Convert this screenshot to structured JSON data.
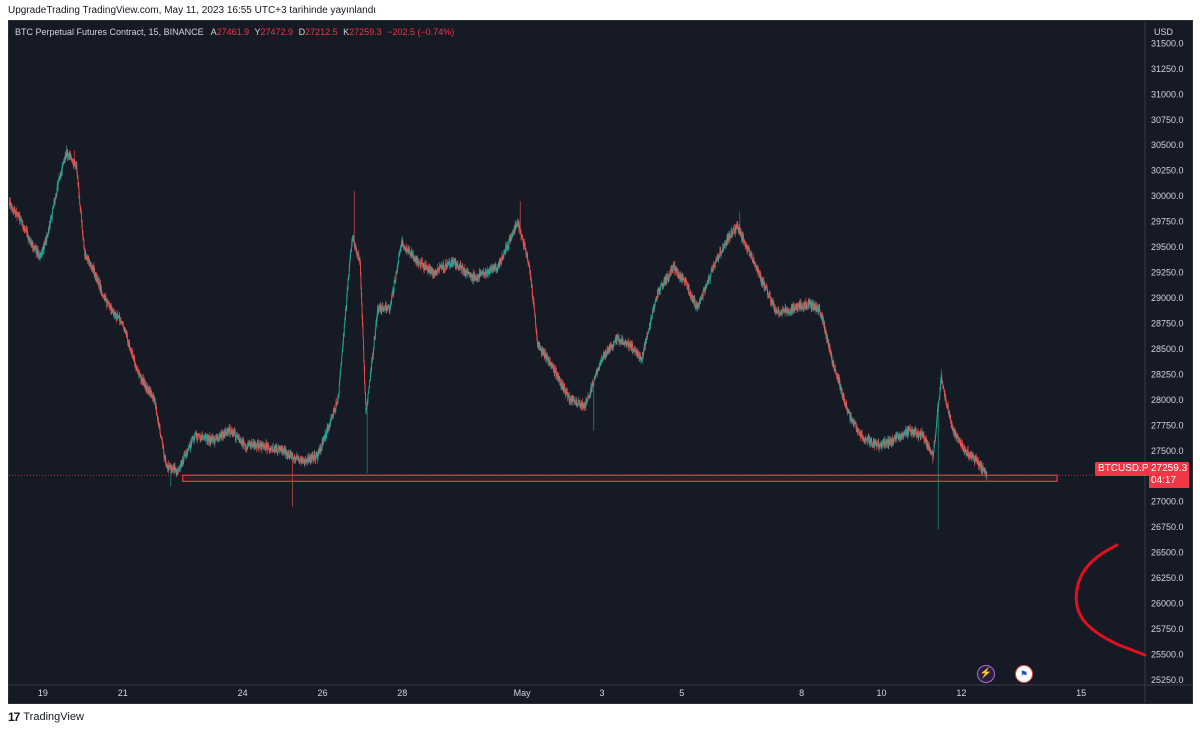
{
  "caption": "UpgradeTrading TradingView.com, May 11, 2023 16:55 UTC+3 tarihinde yayınlandı",
  "legend": {
    "symbol": "BTC Perpetual Futures Contract, 15, BINANCE",
    "open_label": "A",
    "open": "27461.9",
    "high_label": "Y",
    "high": "27472.9",
    "low_label": "D",
    "low": "27212.5",
    "close_label": "K",
    "close": "27259.3",
    "change": "−202.5 (−0.74%)"
  },
  "price_label": {
    "ticker": "BTCUSD.P",
    "price": "27259.3",
    "countdown": "04:17"
  },
  "footer": {
    "brand": "TradingView",
    "logo_text": "17"
  },
  "icons": {
    "flash": "lightning-icon",
    "flag": "us-flag-icon"
  },
  "colors": {
    "background": "#161a25",
    "up": "#26a69a",
    "down": "#ef5350",
    "support": "#f23645",
    "accent_curve": "#e01020"
  },
  "chart_data": {
    "type": "candlestick",
    "currency": "USD",
    "y_ticks": [
      "31500.0",
      "31250.0",
      "31000.0",
      "30750.0",
      "30500.0",
      "30250.0",
      "30000.0",
      "29750.0",
      "29500.0",
      "29250.0",
      "29000.0",
      "28750.0",
      "28500.0",
      "28250.0",
      "28000.0",
      "27750.0",
      "27500.0",
      "27000.0",
      "26750.0",
      "26500.0",
      "26250.0",
      "26000.0",
      "25750.0",
      "25500.0",
      "25250.0"
    ],
    "ylim": [
      25200,
      31720
    ],
    "x_ticks": [
      {
        "label": "19",
        "day": 1.5
      },
      {
        "label": "21",
        "day": 3.5
      },
      {
        "label": "24",
        "day": 6.5
      },
      {
        "label": "26",
        "day": 8.5
      },
      {
        "label": "28",
        "day": 10.5
      },
      {
        "label": "May",
        "day": 13.5
      },
      {
        "label": "3",
        "day": 15.5
      },
      {
        "label": "5",
        "day": 17.5
      },
      {
        "label": "8",
        "day": 20.5
      },
      {
        "label": "10",
        "day": 22.5
      },
      {
        "label": "12",
        "day": 24.5
      },
      {
        "label": "15",
        "day": 27.5
      }
    ],
    "xlim": [
      0.65,
      29.1
    ],
    "trend": [
      [
        0.65,
        29950
      ],
      [
        0.9,
        29800
      ],
      [
        1.2,
        29550
      ],
      [
        1.45,
        29400
      ],
      [
        1.65,
        29650
      ],
      [
        1.9,
        30150
      ],
      [
        2.1,
        30420
      ],
      [
        2.35,
        30300
      ],
      [
        2.55,
        29450
      ],
      [
        2.8,
        29250
      ],
      [
        3.1,
        28950
      ],
      [
        3.5,
        28750
      ],
      [
        3.9,
        28250
      ],
      [
        4.3,
        28000
      ],
      [
        4.6,
        27350
      ],
      [
        4.9,
        27300
      ],
      [
        5.3,
        27650
      ],
      [
        5.8,
        27600
      ],
      [
        6.2,
        27700
      ],
      [
        6.6,
        27550
      ],
      [
        7.0,
        27550
      ],
      [
        7.5,
        27500
      ],
      [
        8.0,
        27400
      ],
      [
        8.4,
        27450
      ],
      [
        8.9,
        28000
      ],
      [
        9.25,
        29600
      ],
      [
        9.45,
        29350
      ],
      [
        9.6,
        27850
      ],
      [
        9.9,
        28900
      ],
      [
        10.2,
        28900
      ],
      [
        10.5,
        29550
      ],
      [
        10.9,
        29350
      ],
      [
        11.3,
        29250
      ],
      [
        11.8,
        29350
      ],
      [
        12.3,
        29200
      ],
      [
        12.9,
        29300
      ],
      [
        13.4,
        29750
      ],
      [
        13.7,
        29300
      ],
      [
        13.9,
        28550
      ],
      [
        14.3,
        28300
      ],
      [
        14.7,
        28000
      ],
      [
        15.1,
        27950
      ],
      [
        15.5,
        28400
      ],
      [
        15.9,
        28600
      ],
      [
        16.2,
        28550
      ],
      [
        16.5,
        28400
      ],
      [
        16.9,
        29050
      ],
      [
        17.3,
        29300
      ],
      [
        17.6,
        29150
      ],
      [
        17.9,
        28900
      ],
      [
        18.3,
        29300
      ],
      [
        18.6,
        29550
      ],
      [
        18.9,
        29700
      ],
      [
        19.2,
        29450
      ],
      [
        19.6,
        29100
      ],
      [
        19.9,
        28850
      ],
      [
        20.3,
        28900
      ],
      [
        20.7,
        28950
      ],
      [
        21.0,
        28850
      ],
      [
        21.3,
        28350
      ],
      [
        21.7,
        27850
      ],
      [
        22.0,
        27650
      ],
      [
        22.4,
        27550
      ],
      [
        22.8,
        27600
      ],
      [
        23.2,
        27700
      ],
      [
        23.55,
        27650
      ],
      [
        23.8,
        27450
      ],
      [
        24.0,
        28200
      ],
      [
        24.3,
        27700
      ],
      [
        24.6,
        27500
      ],
      [
        24.9,
        27400
      ],
      [
        25.15,
        27259
      ]
    ],
    "notable_extremes": [
      {
        "day": 2.1,
        "high": 30500
      },
      {
        "day": 2.3,
        "high": 30450
      },
      {
        "day": 4.7,
        "low": 27150
      },
      {
        "day": 7.75,
        "low": 26950
      },
      {
        "day": 9.3,
        "high": 30050
      },
      {
        "day": 9.62,
        "low": 27280
      },
      {
        "day": 13.45,
        "high": 29950
      },
      {
        "day": 15.3,
        "low": 27700
      },
      {
        "day": 18.95,
        "high": 29850
      },
      {
        "day": 23.92,
        "low": 26730
      },
      {
        "day": 24.0,
        "high": 28300
      }
    ],
    "support_zone": {
      "from": 27200,
      "to": 27260,
      "start_day": 5.0,
      "end_day": 26.9
    },
    "last_price": 27259.3
  }
}
